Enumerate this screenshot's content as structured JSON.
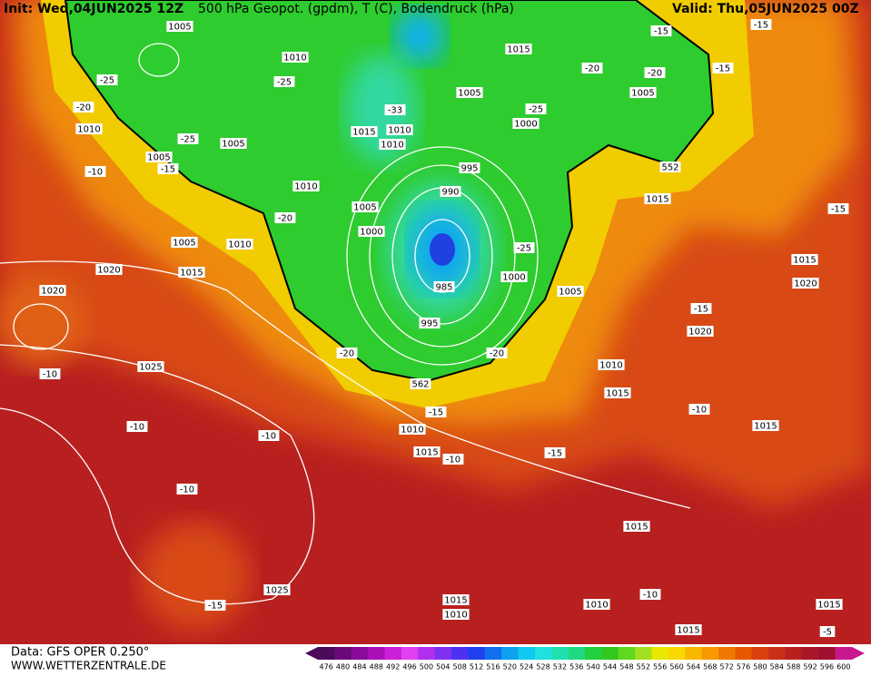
{
  "header": {
    "init": "Init: Wed,04JUN2025 12Z",
    "title": "500 hPa Geopot. (gpdm), T (C), Bodendruck (hPa)",
    "valid": "Valid: Thu,05JUN2025 00Z"
  },
  "footer": {
    "data": "Data: GFS OPER 0.250°",
    "site": "WWW.WETTERZENTRALE.DE"
  },
  "map": {
    "labels": [
      "1005",
      "1010",
      "-25",
      "-20",
      "1010",
      "1005",
      "-15",
      "-10",
      "-25",
      "1005",
      "-25",
      "1015",
      "1005",
      "1000",
      "-25",
      "-33",
      "1015",
      "1010",
      "1010",
      "-20",
      "1005",
      "-20",
      "-15",
      "-15",
      "-15",
      "552",
      "995",
      "990",
      "1010",
      "-20",
      "1005",
      "1000",
      "1015",
      "-25",
      "1000",
      "985",
      "1005",
      "995",
      "1005",
      "1010",
      "1020",
      "1015",
      "1020",
      "-10",
      "1025",
      "-20",
      "-20",
      "562",
      "1010",
      "1015",
      "-15",
      "1010",
      "-10",
      "-10",
      "1015",
      "-10",
      "-15",
      "-10",
      "1015",
      "1015",
      "1020",
      "-15",
      "1020",
      "-15",
      "-10",
      "1015",
      "1025",
      "-15",
      "1015",
      "1010",
      "1010",
      "-10",
      "1015",
      "1015",
      "-5"
    ]
  },
  "colorbar": {
    "levels": [
      476,
      480,
      484,
      488,
      492,
      496,
      500,
      504,
      508,
      512,
      516,
      520,
      524,
      528,
      532,
      536,
      540,
      544,
      548,
      552,
      556,
      560,
      564,
      568,
      572,
      576,
      580,
      584,
      588,
      592,
      596,
      600
    ],
    "colors": [
      "#4b0a5a",
      "#6a0a7a",
      "#8a0a9a",
      "#aa10b8",
      "#cc20d8",
      "#e040f0",
      "#b030f0",
      "#8030f0",
      "#5030f0",
      "#2040f0",
      "#1070f0",
      "#10a0f0",
      "#10c8f0",
      "#20e0e0",
      "#20e0b0",
      "#20d880",
      "#20d040",
      "#30c820",
      "#60d820",
      "#a0e020",
      "#e8e800",
      "#f8d800",
      "#f8b800",
      "#f89800",
      "#f07800",
      "#e85800",
      "#d84010",
      "#c83018",
      "#b82020",
      "#a81828",
      "#a01030",
      "#c81890"
    ]
  }
}
